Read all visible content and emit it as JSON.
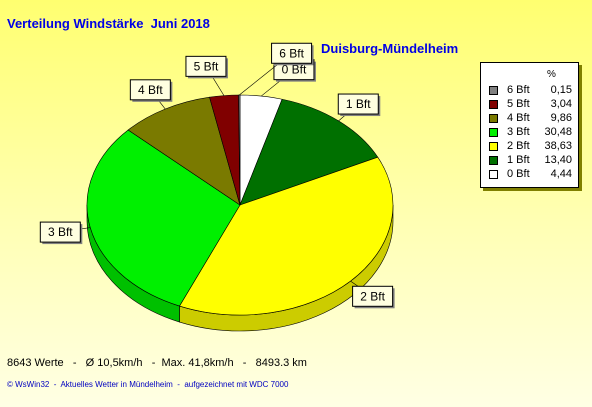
{
  "title": "Verteilung Windstärke  Juni 2018",
  "location": "Duisburg-Mündelheim",
  "chart_data": {
    "type": "pie",
    "title": "Verteilung Windstärke  Juni 2018",
    "unit": "%",
    "legend_placement": "right",
    "slices": [
      {
        "label": "0 Bft",
        "value": 4.44,
        "color": "#ffffff"
      },
      {
        "label": "1 Bft",
        "value": 13.4,
        "color": "#007000"
      },
      {
        "label": "2 Bft",
        "value": 38.63,
        "color": "#ffff00"
      },
      {
        "label": "3 Bft",
        "value": 30.48,
        "color": "#00f000"
      },
      {
        "label": "4 Bft",
        "value": 9.86,
        "color": "#7a7a00"
      },
      {
        "label": "5 Bft",
        "value": 3.04,
        "color": "#800000"
      },
      {
        "label": "6 Bft",
        "value": 0.15,
        "color": "#808080"
      }
    ]
  },
  "legend": {
    "header": "%",
    "rows": [
      {
        "name": "6 Bft",
        "value": "0,15",
        "color": "#808080"
      },
      {
        "name": "5 Bft",
        "value": "3,04",
        "color": "#800000"
      },
      {
        "name": "4 Bft",
        "value": "9,86",
        "color": "#7a7a00"
      },
      {
        "name": "3 Bft",
        "value": "30,48",
        "color": "#00f000"
      },
      {
        "name": "2 Bft",
        "value": "38,63",
        "color": "#ffff00"
      },
      {
        "name": "1 Bft",
        "value": "13,40",
        "color": "#007000"
      },
      {
        "name": "0 Bft",
        "value": "4,44",
        "color": "#ffffff"
      }
    ]
  },
  "stats": "8643 Werte   -   Ø 10,5km/h   -  Max. 41,8km/h   -   8493.3 km",
  "footer": "© WsWin32  -  Aktuelles Wetter in Mündelheim  -  aufgezeichnet mit WDC 7000"
}
